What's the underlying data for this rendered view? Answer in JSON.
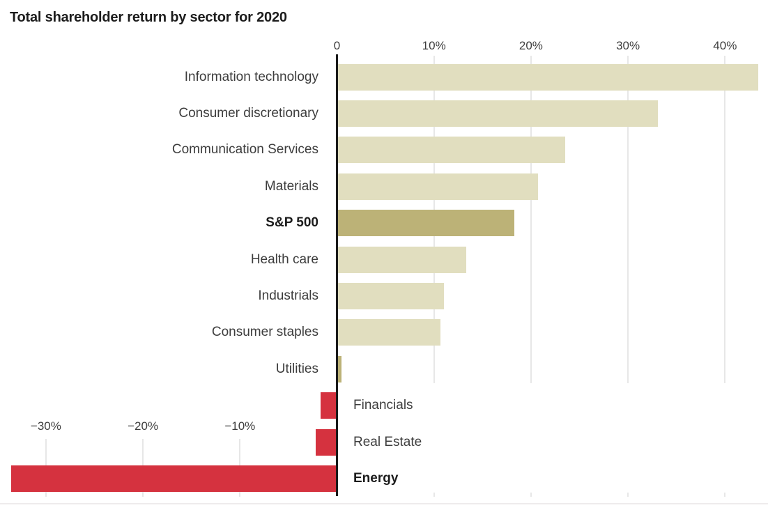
{
  "chart_data": {
    "type": "bar",
    "orientation": "horizontal",
    "title": "Total shareholder return by sector for 2020",
    "value_unit": "percent",
    "xlim": [
      -34,
      44
    ],
    "grid": true,
    "legend": "none",
    "x_axis": {
      "top_ticks": [
        {
          "label": "0",
          "value": 0
        },
        {
          "label": "10%",
          "value": 10
        },
        {
          "label": "20%",
          "value": 20
        },
        {
          "label": "30%",
          "value": 30
        },
        {
          "label": "40%",
          "value": 40
        }
      ],
      "bottom_ticks": [
        {
          "label": "−30%",
          "value": -30
        },
        {
          "label": "−20%",
          "value": -20
        },
        {
          "label": "−10%",
          "value": -10
        }
      ]
    },
    "series": [
      {
        "label": "Information technology",
        "value": 43.4,
        "bold": false,
        "color": "beige"
      },
      {
        "label": "Consumer discretionary",
        "value": 33.1,
        "bold": false,
        "color": "beige"
      },
      {
        "label": "Communication Services",
        "value": 23.5,
        "bold": false,
        "color": "beige"
      },
      {
        "label": "Materials",
        "value": 20.7,
        "bold": false,
        "color": "beige"
      },
      {
        "label": "S&P 500",
        "value": 18.3,
        "bold": true,
        "color": "olive"
      },
      {
        "label": "Health care",
        "value": 13.3,
        "bold": false,
        "color": "beige"
      },
      {
        "label": "Industrials",
        "value": 11.0,
        "bold": false,
        "color": "beige"
      },
      {
        "label": "Consumer staples",
        "value": 10.7,
        "bold": false,
        "color": "beige"
      },
      {
        "label": "Utilities",
        "value": 0.5,
        "bold": false,
        "color": "olive"
      },
      {
        "label": "Financials",
        "value": -1.7,
        "bold": false,
        "color": "red"
      },
      {
        "label": "Real Estate",
        "value": -2.2,
        "bold": false,
        "color": "red"
      },
      {
        "label": "Energy",
        "value": -33.6,
        "bold": true,
        "color": "red"
      }
    ],
    "colors": {
      "beige": "#e1debf",
      "olive": "#bcb277",
      "red": "#d5323f",
      "axis": "#1a1a1a",
      "grid": "#e7e7e7",
      "text": "#3d3d3d",
      "text_strong": "#1c1c1c"
    }
  }
}
